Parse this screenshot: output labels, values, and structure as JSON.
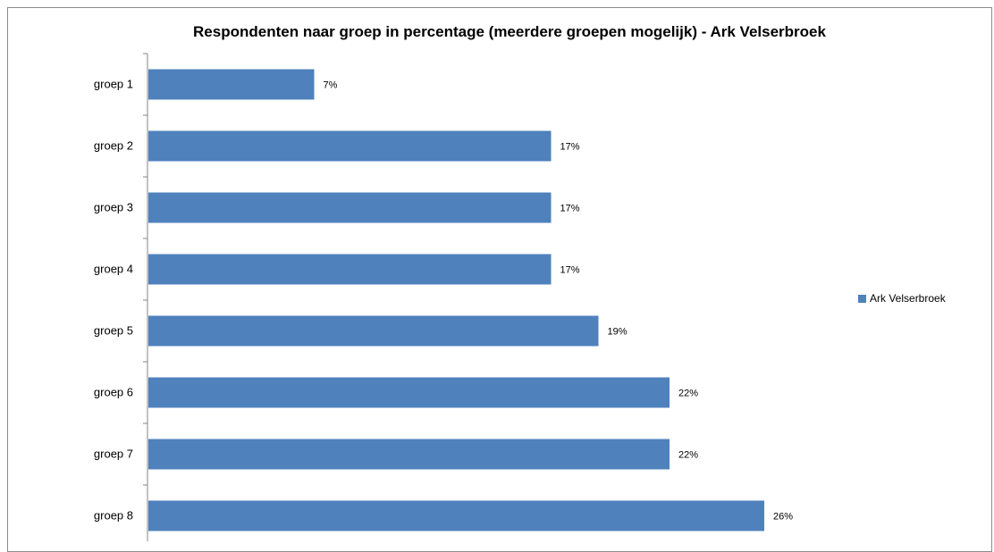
{
  "chart_data": {
    "type": "bar",
    "orientation": "horizontal",
    "title": "Respondenten naar groep in percentage (meerdere groepen mogelijk) - Ark Velserbroek",
    "categories": [
      "groep 1",
      "groep 2",
      "groep 3",
      "groep 4",
      "groep 5",
      "groep 6",
      "groep 7",
      "groep 8"
    ],
    "series": [
      {
        "name": "Ark Velserbroek",
        "values": [
          7,
          17,
          17,
          17,
          19,
          22,
          22,
          26
        ],
        "labels": [
          "7%",
          "17%",
          "17%",
          "17%",
          "19%",
          "22%",
          "22%",
          "26%"
        ],
        "color": "#4f81bd"
      }
    ],
    "value_unit": "%",
    "xlim": [
      0,
      26
    ],
    "grid": false,
    "legend": "right"
  }
}
